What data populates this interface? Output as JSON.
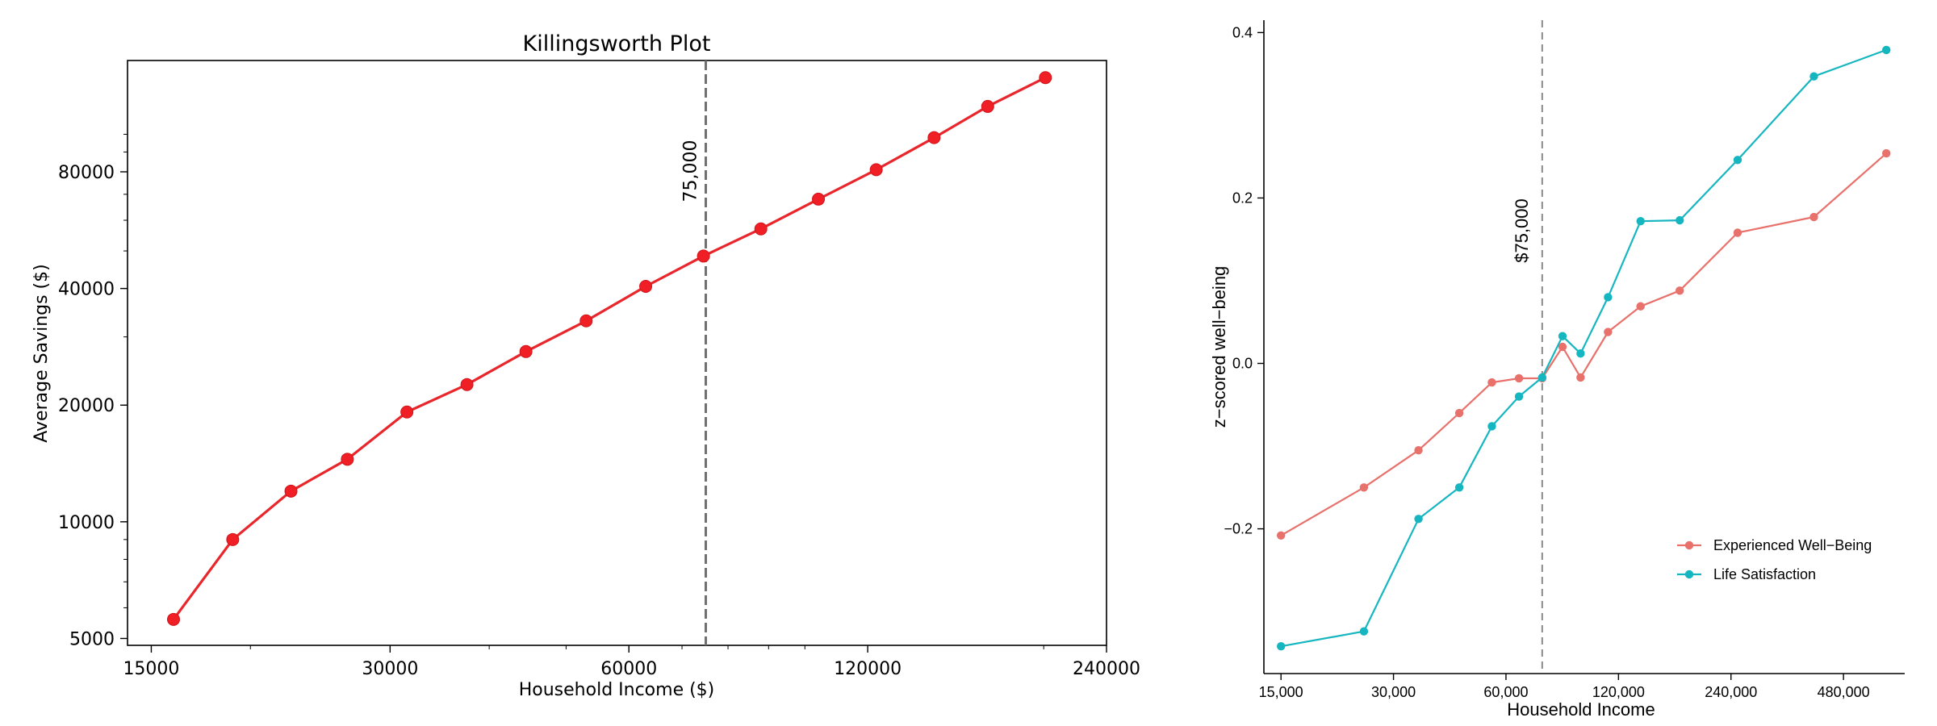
{
  "chart_data": [
    {
      "type": "line",
      "title": "Killingsworth Plot",
      "xlabel": "Household Income ($)",
      "ylabel": "Average Savings ($)",
      "x_scale": "log",
      "y_scale": "log",
      "xlim": [
        14000,
        240000
      ],
      "ylim": [
        4800,
        155000
      ],
      "x_ticks": [
        15000,
        30000,
        60000,
        120000,
        240000
      ],
      "x_tick_labels": [
        "15000",
        "30000",
        "60000",
        "120000",
        "240000"
      ],
      "y_ticks": [
        5000,
        10000,
        20000,
        40000,
        80000
      ],
      "y_tick_labels": [
        "5000",
        "10000",
        "20000",
        "40000",
        "80000"
      ],
      "grid": false,
      "legend": "none",
      "series_color": "#e8262b",
      "marker_color": "#f01e25",
      "reference_line": {
        "x": 75000,
        "label": "75,000",
        "color": "#707070"
      },
      "x": [
        16000,
        19000,
        22500,
        26500,
        31500,
        37500,
        44500,
        53000,
        63000,
        74500,
        88000,
        104000,
        123000,
        145500,
        170000,
        201000
      ],
      "y": [
        5600,
        9000,
        12000,
        14500,
        19200,
        22600,
        27500,
        33000,
        40500,
        48500,
        57000,
        68000,
        81000,
        98000,
        118000,
        140000
      ]
    },
    {
      "type": "line",
      "title": "",
      "xlabel": "Household Income",
      "ylabel": "z−scored well−being",
      "x_scale": "log",
      "xlim": [
        13500,
        700000
      ],
      "ylim": [
        -0.375,
        0.415
      ],
      "x_ticks": [
        15000,
        30000,
        60000,
        120000,
        240000,
        480000
      ],
      "x_tick_labels": [
        "15,000",
        "30,000",
        "60,000",
        "120,000",
        "240,000",
        "480,000"
      ],
      "y_ticks": [
        -0.2,
        0.0,
        0.2,
        0.4
      ],
      "y_tick_labels": [
        "−0.2",
        "0.0",
        "0.2",
        "0.4"
      ],
      "grid": false,
      "legend": "bottom-right",
      "reference_line": {
        "x": 75000,
        "label": "$75,000",
        "color": "#8a8a8a"
      },
      "x": [
        15000,
        25000,
        35000,
        45000,
        55000,
        65000,
        75000,
        85000,
        95000,
        112500,
        137500,
        175000,
        250000,
        400000,
        625000
      ],
      "series": [
        {
          "name": "Experienced Well−Being",
          "color": "#e8716c",
          "values": [
            -0.208,
            -0.15,
            -0.105,
            -0.06,
            -0.023,
            -0.018,
            -0.018,
            0.02,
            -0.017,
            0.038,
            0.069,
            0.088,
            0.158,
            0.177,
            0.254
          ]
        },
        {
          "name": "Life Satisfaction",
          "color": "#15b6c0",
          "values": [
            -0.342,
            -0.324,
            -0.188,
            -0.15,
            -0.076,
            -0.04,
            -0.017,
            0.033,
            0.012,
            0.08,
            0.172,
            0.173,
            0.246,
            0.347,
            0.379
          ]
        }
      ]
    }
  ]
}
